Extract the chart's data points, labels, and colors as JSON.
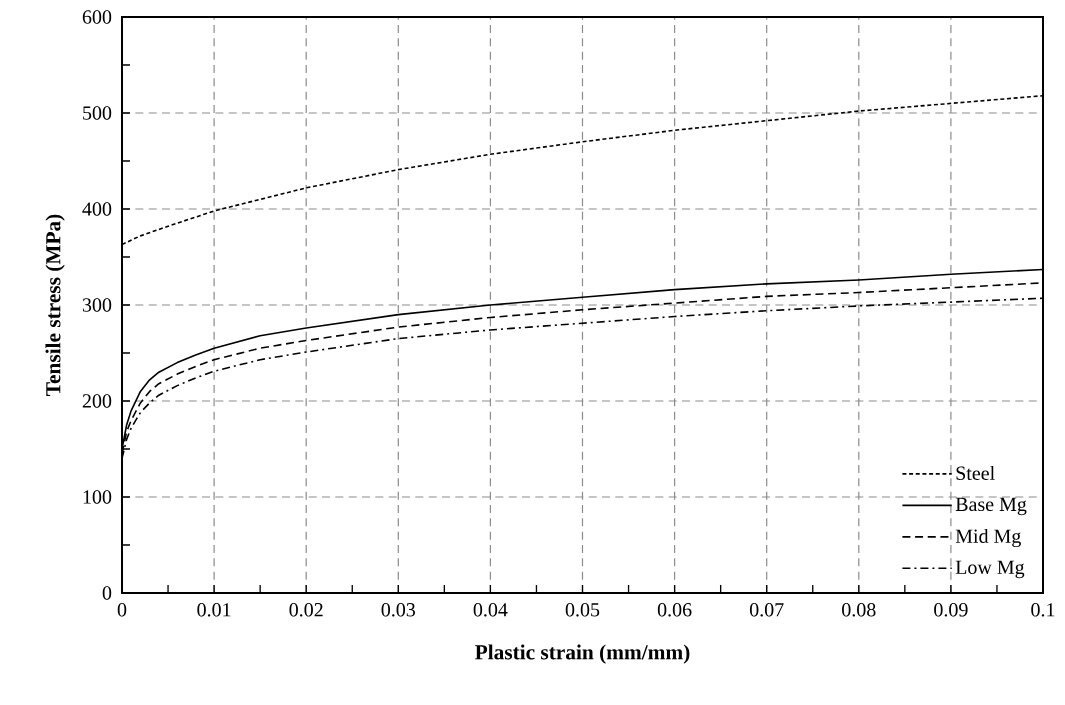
{
  "chart_data": {
    "type": "line",
    "xlabel": "Plastic strain (mm/mm)",
    "ylabel": "Tensile stress (MPa)",
    "xlim": [
      0,
      0.1
    ],
    "ylim": [
      0,
      600
    ],
    "xticks": [
      0,
      0.01,
      0.02,
      0.03,
      0.04,
      0.05,
      0.06,
      0.07,
      0.08,
      0.09,
      0.1
    ],
    "yticks": [
      0,
      100,
      200,
      300,
      400,
      500,
      600
    ],
    "grid": true,
    "legend": "bottom right",
    "marker": "none",
    "series": [
      {
        "name": "Steel",
        "color": "#000000",
        "line_style": "dotted",
        "x": [
          0,
          0.002,
          0.005,
          0.01,
          0.02,
          0.03,
          0.04,
          0.05,
          0.06,
          0.07,
          0.08,
          0.09,
          0.1
        ],
        "values": [
          363,
          372,
          382,
          398,
          422,
          441,
          457,
          470,
          482,
          492,
          502,
          510,
          518
        ]
      },
      {
        "name": "Base Mg",
        "color": "#000000",
        "line_style": "solid",
        "x": [
          0,
          0.0005,
          0.001,
          0.002,
          0.003,
          0.004,
          0.006,
          0.008,
          0.01,
          0.015,
          0.02,
          0.03,
          0.04,
          0.05,
          0.06,
          0.07,
          0.08,
          0.09,
          0.1
        ],
        "values": [
          150,
          175,
          190,
          210,
          222,
          230,
          240,
          248,
          255,
          268,
          276,
          290,
          300,
          308,
          316,
          322,
          326,
          332,
          337
        ]
      },
      {
        "name": "Mid Mg",
        "color": "#000000",
        "line_style": "dashed",
        "x": [
          0,
          0.0005,
          0.001,
          0.002,
          0.003,
          0.004,
          0.006,
          0.008,
          0.01,
          0.015,
          0.02,
          0.03,
          0.04,
          0.05,
          0.06,
          0.07,
          0.08,
          0.09,
          0.1
        ],
        "values": [
          145,
          168,
          180,
          198,
          210,
          218,
          228,
          236,
          243,
          255,
          263,
          277,
          287,
          295,
          302,
          309,
          313,
          318,
          323
        ]
      },
      {
        "name": "Low Mg",
        "color": "#000000",
        "line_style": "dashdot",
        "x": [
          0,
          0.0005,
          0.001,
          0.002,
          0.003,
          0.004,
          0.006,
          0.008,
          0.01,
          0.015,
          0.02,
          0.03,
          0.04,
          0.05,
          0.06,
          0.07,
          0.08,
          0.09,
          0.1
        ],
        "values": [
          140,
          160,
          172,
          188,
          198,
          206,
          216,
          224,
          231,
          243,
          251,
          265,
          274,
          281,
          288,
          294,
          299,
          303,
          307
        ]
      }
    ]
  }
}
